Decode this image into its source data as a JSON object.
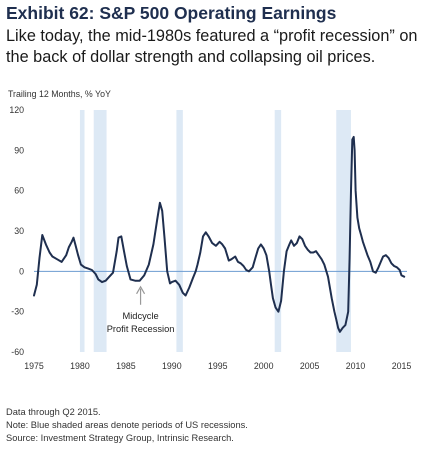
{
  "header": {
    "title": "Exhibit 62: S&P 500 Operating Earnings",
    "subtitle": "Like today, the mid-1980s featured a “profit recession” on the back of dollar strength and collapsing oil prices."
  },
  "chart_data": {
    "type": "line",
    "title": "",
    "ylabel": "Trailing 12 Months, % YoY",
    "xlabel": "",
    "xlim": [
      1975,
      2015.6
    ],
    "ylim": [
      -60,
      120
    ],
    "yticks": [
      -60,
      -30,
      0,
      30,
      60,
      90,
      120
    ],
    "xticks": [
      1975,
      1980,
      1985,
      1990,
      1995,
      2000,
      2005,
      2010,
      2015
    ],
    "grid": false,
    "zero_line": true,
    "line_color": "#1f2f4f",
    "recession_color": "#dde9f5",
    "recessions": [
      [
        1980.0,
        1980.5
      ],
      [
        1981.5,
        1982.9
      ],
      [
        1990.5,
        1991.2
      ],
      [
        2001.2,
        2001.9
      ],
      [
        2007.9,
        2009.5
      ]
    ],
    "annotation": {
      "lines": [
        "Midcycle",
        "Profit Recession"
      ],
      "x": 1986.6,
      "y": -10
    },
    "series": [
      {
        "name": "",
        "x": [
          1975.0,
          1975.3,
          1975.6,
          1975.9,
          1976.3,
          1976.7,
          1977.0,
          1977.5,
          1978.0,
          1978.5,
          1978.8,
          1979.1,
          1979.3,
          1979.5,
          1979.8,
          1980.1,
          1980.5,
          1980.9,
          1981.3,
          1981.7,
          1982.0,
          1982.4,
          1982.8,
          1983.2,
          1983.6,
          1984.0,
          1984.2,
          1984.5,
          1984.8,
          1985.1,
          1985.5,
          1986.0,
          1986.5,
          1987.0,
          1987.5,
          1988.0,
          1988.4,
          1988.7,
          1988.95,
          1989.2,
          1989.5,
          1989.8,
          1990.0,
          1990.4,
          1990.8,
          1991.2,
          1991.5,
          1991.9,
          1992.3,
          1992.6,
          1992.8,
          1993.1,
          1993.4,
          1993.7,
          1994.0,
          1994.4,
          1994.8,
          1995.2,
          1995.5,
          1995.8,
          1996.2,
          1996.5,
          1996.9,
          1997.2,
          1997.5,
          1997.8,
          1998.1,
          1998.4,
          1998.8,
          1999.1,
          1999.4,
          1999.7,
          2000.0,
          2000.3,
          2000.6,
          2000.8,
          2001.0,
          2001.3,
          2001.6,
          2001.9,
          2002.2,
          2002.5,
          2002.8,
          2003.0,
          2003.3,
          2003.6,
          2003.9,
          2004.2,
          2004.5,
          2004.8,
          2005.1,
          2005.4,
          2005.7,
          2006.0,
          2006.3,
          2006.6,
          2007.0,
          2007.4,
          2007.7,
          2007.9,
          2008.1,
          2008.3,
          2008.6,
          2008.9,
          2009.2,
          2009.35,
          2009.5,
          2009.65,
          2009.8,
          2009.9,
          2010.0,
          2010.2,
          2010.4,
          2010.6,
          2010.8,
          2011.0,
          2011.3,
          2011.6,
          2011.9,
          2012.2,
          2012.5,
          2012.8,
          2013.0,
          2013.3,
          2013.6,
          2013.9,
          2014.2,
          2014.5,
          2014.8,
          2015.0,
          2015.3
        ],
        "y": [
          -18,
          -10,
          10,
          27,
          20,
          14,
          11,
          9,
          7,
          12,
          18,
          22,
          25,
          20,
          12,
          5,
          3,
          2,
          1,
          -2,
          -6,
          -8,
          -7,
          -4,
          -1,
          15,
          25,
          26,
          15,
          4,
          -6,
          -7,
          -7,
          -3,
          5,
          20,
          38,
          51,
          45,
          25,
          0,
          -9,
          -8,
          -7,
          -10,
          -16,
          -18,
          -12,
          -5,
          0,
          5,
          14,
          26,
          29,
          26,
          21,
          19,
          22,
          20,
          17,
          8,
          9,
          11,
          7,
          6,
          4,
          1,
          0,
          3,
          10,
          17,
          20,
          17,
          12,
          0,
          -10,
          -20,
          -27,
          -30,
          -22,
          0,
          15,
          20,
          23,
          19,
          21,
          26,
          24,
          19,
          16,
          14,
          14,
          15,
          12,
          9,
          5,
          -4,
          -20,
          -30,
          -36,
          -42,
          -45,
          -42,
          -40,
          -30,
          10,
          60,
          98,
          100,
          90,
          60,
          40,
          32,
          27,
          22,
          18,
          12,
          7,
          0,
          -1,
          3,
          8,
          11,
          12,
          10,
          6,
          4,
          3,
          1,
          -3,
          -4
        ]
      }
    ]
  },
  "notes": {
    "line1": "Data through Q2 2015.",
    "line2": "Note: Blue shaded areas denote periods of US recessions.",
    "line3": "Source: Investment Strategy Group, Intrinsic Research."
  }
}
